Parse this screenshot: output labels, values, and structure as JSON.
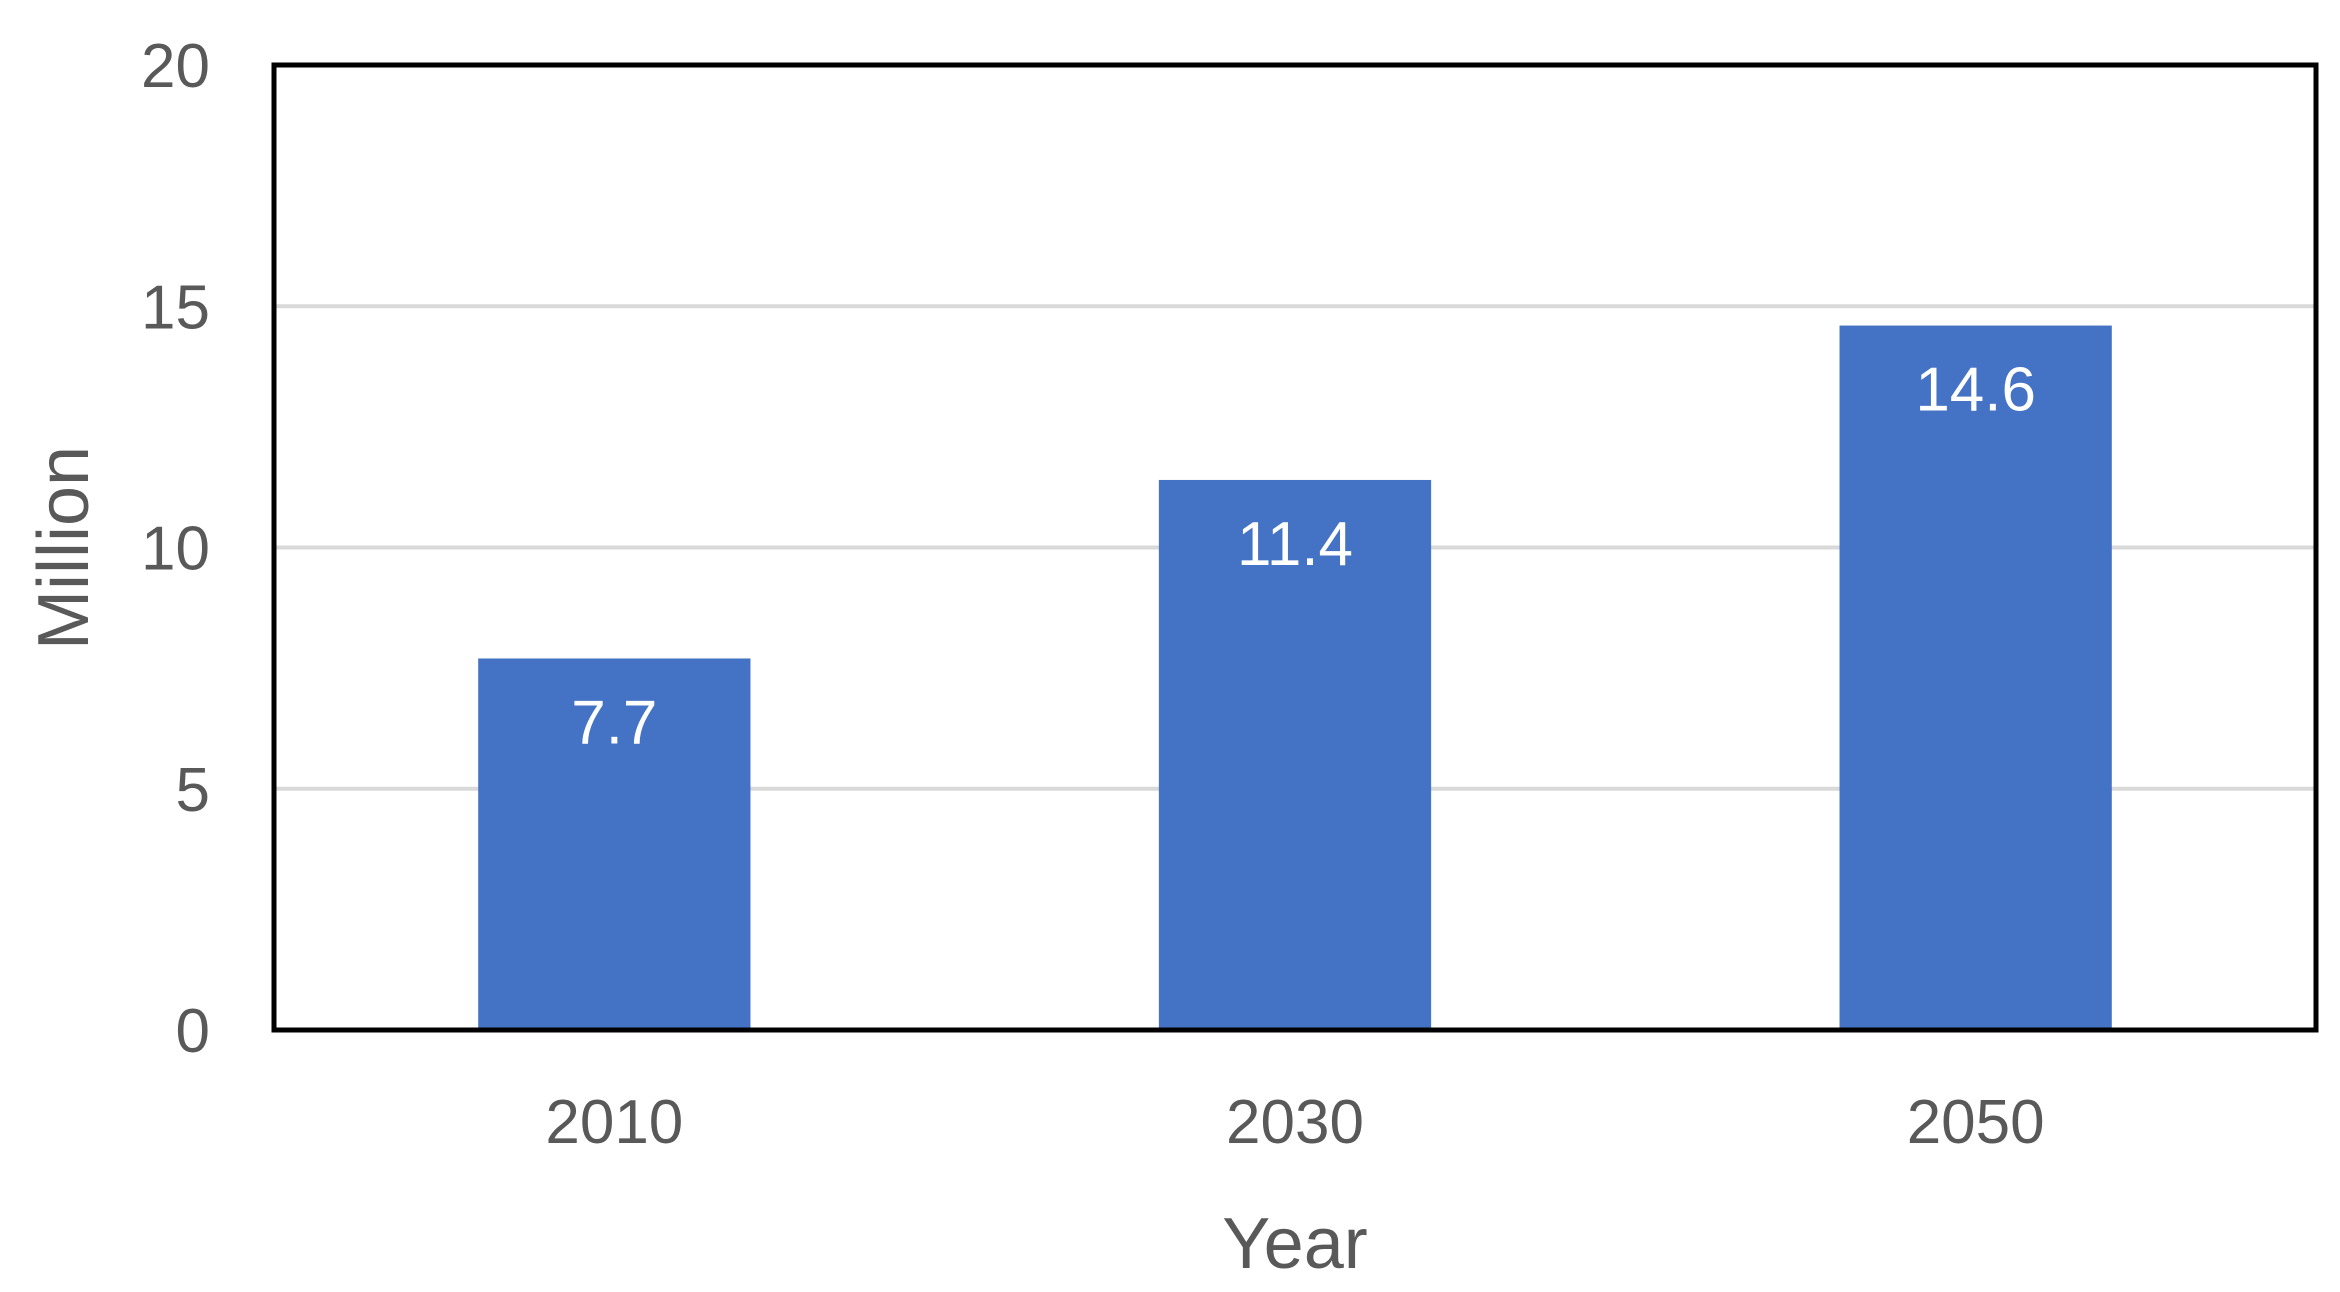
{
  "chart_data": {
    "type": "bar",
    "categories": [
      "2010",
      "2030",
      "2050"
    ],
    "values": [
      7.7,
      11.4,
      14.6
    ],
    "data_labels": [
      "7.7",
      "11.4",
      "14.6"
    ],
    "title": "",
    "xlabel": "Year",
    "ylabel": "Million",
    "ylim": [
      0,
      20
    ],
    "yticks": [
      0,
      5,
      10,
      15,
      20
    ],
    "ytick_labels": [
      "0",
      "5",
      "10",
      "15",
      "20"
    ],
    "grid": "horizontal",
    "legend": "none",
    "colors": {
      "bar": "#4472C4",
      "grid": "#D9D9D9",
      "frame": "#000000",
      "text": "#595959",
      "data_label": "#FFFFFF"
    }
  }
}
